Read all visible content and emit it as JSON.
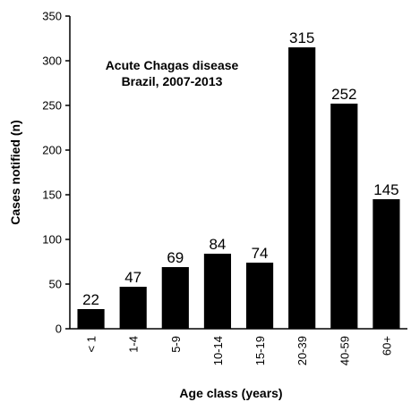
{
  "chart_data": {
    "type": "bar",
    "title": "Acute Chagas disease",
    "subtitle": "Brazil, 2007-2013",
    "xlabel": "Age class (years)",
    "ylabel": "Cases notified (n)",
    "categories": [
      "< 1",
      "1-4",
      "5-9",
      "10-14",
      "15-19",
      "20-39",
      "40-59",
      "60+"
    ],
    "values": [
      22,
      47,
      69,
      84,
      74,
      315,
      252,
      145
    ],
    "data_labels": [
      "22",
      "47",
      "69",
      "84",
      "74",
      "315",
      "252",
      "145"
    ],
    "ylim": [
      0,
      350
    ],
    "yticks": [
      "0",
      "50",
      "100",
      "150",
      "200",
      "250",
      "300",
      "350"
    ],
    "bar_color": "#000000",
    "grid": false,
    "legend": "none"
  }
}
